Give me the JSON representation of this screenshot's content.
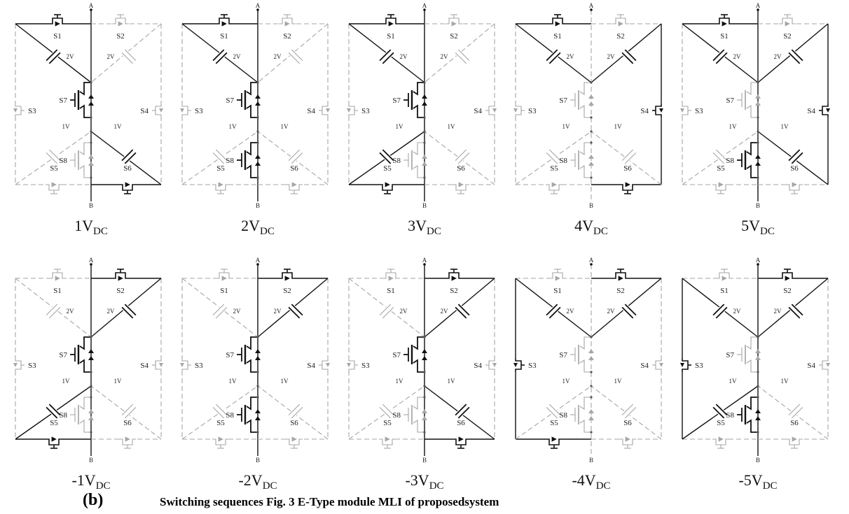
{
  "figure": {
    "panel_tag": "(b)",
    "caption": "Switching sequences Fig. 3 E-Type module MLI of proposedsystem"
  },
  "labels": {
    "A": "A",
    "B": "B",
    "S1": "S1",
    "S2": "S2",
    "S3": "S3",
    "S4": "S4",
    "S5": "S5",
    "S6": "S6",
    "S7": "S7",
    "S8": "S8",
    "cap_2v": "2V",
    "cap_1v": "1V"
  },
  "states": [
    {
      "prefix": "1V",
      "sub": "DC",
      "active": [
        "S1",
        "S6",
        "S7",
        "C2L",
        "C1R"
      ]
    },
    {
      "prefix": "2V",
      "sub": "DC",
      "active": [
        "S1",
        "S7",
        "S8",
        "C2L"
      ]
    },
    {
      "prefix": "3V",
      "sub": "DC",
      "active": [
        "S1",
        "S5",
        "S7",
        "C2L",
        "C1L"
      ]
    },
    {
      "prefix": "4V",
      "sub": "DC",
      "active": [
        "S1",
        "S6",
        "S4",
        "C2L",
        "C2R"
      ]
    },
    {
      "prefix": "5V",
      "sub": "DC",
      "active": [
        "S1",
        "S4",
        "S8",
        "C2L",
        "C2R",
        "C1R"
      ]
    },
    {
      "prefix": "-1V",
      "sub": "DC",
      "active": [
        "S2",
        "S5",
        "S7",
        "C2R",
        "C1L"
      ]
    },
    {
      "prefix": "-2V",
      "sub": "DC",
      "active": [
        "S2",
        "S7",
        "S8",
        "C2R"
      ]
    },
    {
      "prefix": "-3V",
      "sub": "DC",
      "active": [
        "S2",
        "S6",
        "S7",
        "C2R",
        "C1R"
      ]
    },
    {
      "prefix": "-4V",
      "sub": "DC",
      "active": [
        "S2",
        "S5",
        "S3",
        "C2L",
        "C2R"
      ]
    },
    {
      "prefix": "-5V",
      "sub": "DC",
      "active": [
        "S2",
        "S3",
        "S8",
        "C2L",
        "C2R",
        "C1L"
      ]
    }
  ]
}
